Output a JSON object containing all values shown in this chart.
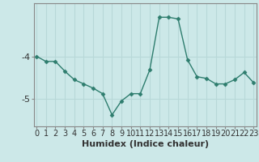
{
  "x": [
    0,
    1,
    2,
    3,
    4,
    5,
    6,
    7,
    8,
    9,
    10,
    11,
    12,
    13,
    14,
    15,
    16,
    17,
    18,
    19,
    20,
    21,
    22,
    23
  ],
  "y": [
    -4.0,
    -4.12,
    -4.12,
    -4.35,
    -4.55,
    -4.65,
    -4.75,
    -4.88,
    -5.38,
    -5.05,
    -4.88,
    -4.88,
    -4.32,
    -3.08,
    -3.08,
    -3.12,
    -4.08,
    -4.48,
    -4.52,
    -4.65,
    -4.65,
    -4.55,
    -4.38,
    -4.62
  ],
  "xlabel": "Humidex (Indice chaleur)",
  "yticks": [
    -5,
    -4
  ],
  "ylim": [
    -5.65,
    -2.75
  ],
  "xlim": [
    -0.3,
    23.3
  ],
  "line_color": "#2E7D6E",
  "marker_color": "#2E7D6E",
  "bg_color": "#CCE8E8",
  "grid_color": "#B8D8D8",
  "axis_color": "#888888",
  "tick_label_color": "#333333",
  "xlabel_color": "#333333",
  "xlabel_fontsize": 8,
  "tick_fontsize": 7,
  "ytick_fontsize": 8
}
